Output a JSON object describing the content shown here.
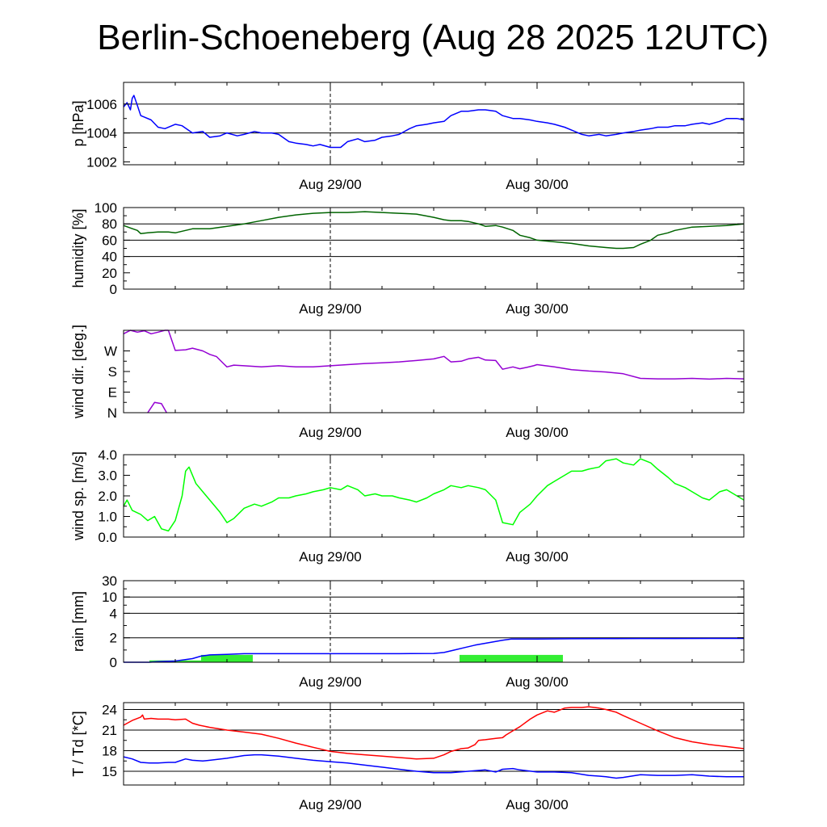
{
  "title": "Berlin-Schoeneberg (Aug 28 2025 12UTC)",
  "colors": {
    "pressure": "#0000ff",
    "humidity": "#006400",
    "wind_dir": "#9400d3",
    "wind_speed": "#00ff00",
    "rain_accum": "#0000ff",
    "rain_bars": "#33ee33",
    "temperature": "#ff0000",
    "dewpoint": "#0000ff"
  },
  "chart_data": [
    {
      "type": "line",
      "name": "pressure",
      "ylabel": "p [hPa]",
      "ylim": [
        1001.8,
        1007.5
      ],
      "yticks": [
        1002,
        1004,
        1006
      ],
      "ytick_labels": [
        "1002",
        "1004",
        "1006"
      ],
      "grid_y": [
        1004,
        1006
      ],
      "xlim": [
        0,
        36
      ],
      "xticks": [
        12,
        24
      ],
      "xtick_labels": [
        "Aug 29/00",
        "Aug 30/00"
      ],
      "vline": 12,
      "series": [
        {
          "color_key": "pressure",
          "x": [
            0,
            0.2,
            0.4,
            0.5,
            0.6,
            0.8,
            1.0,
            1.2,
            1.6,
            2.0,
            2.4,
            3.0,
            3.4,
            4.0,
            4.6,
            5.0,
            5.6,
            6.0,
            6.6,
            7.0,
            7.6,
            8.0,
            8.6,
            9.0,
            9.6,
            10.0,
            10.6,
            11.0,
            11.4,
            12.0,
            12.6,
            13.0,
            13.6,
            14.0,
            14.6,
            15.0,
            15.6,
            16.0,
            16.6,
            17.0,
            17.6,
            18.0,
            18.6,
            19.0,
            19.6,
            20.0,
            20.6,
            21.0,
            21.6,
            22.0,
            22.6,
            23.0,
            23.6,
            24.0,
            24.6,
            25.0,
            25.6,
            26.0,
            26.6,
            27.0,
            27.6,
            28.0,
            28.6,
            29.0,
            29.6,
            30.0,
            30.6,
            31.0,
            31.6,
            32.0,
            32.6,
            33.0,
            33.6,
            34.0,
            34.6,
            35.0,
            35.6,
            36.0
          ],
          "y": [
            1005.8,
            1006.1,
            1005.6,
            1006.4,
            1006.6,
            1005.9,
            1005.2,
            1005.1,
            1004.9,
            1004.4,
            1004.3,
            1004.6,
            1004.5,
            1004.0,
            1004.1,
            1003.7,
            1003.8,
            1004.0,
            1003.8,
            1003.9,
            1004.1,
            1004.0,
            1004.0,
            1003.9,
            1003.4,
            1003.3,
            1003.2,
            1003.1,
            1003.2,
            1003.0,
            1003.0,
            1003.4,
            1003.6,
            1003.4,
            1003.5,
            1003.7,
            1003.8,
            1003.9,
            1004.3,
            1004.5,
            1004.6,
            1004.7,
            1004.8,
            1005.2,
            1005.5,
            1005.5,
            1005.6,
            1005.6,
            1005.5,
            1005.2,
            1005.0,
            1005.0,
            1004.9,
            1004.8,
            1004.7,
            1004.6,
            1004.4,
            1004.2,
            1003.9,
            1003.8,
            1003.9,
            1003.8,
            1003.9,
            1004.0,
            1004.1,
            1004.2,
            1004.3,
            1004.4,
            1004.4,
            1004.5,
            1004.5,
            1004.6,
            1004.7,
            1004.6,
            1004.8,
            1005.0,
            1005.0,
            1004.9
          ]
        }
      ]
    },
    {
      "type": "line",
      "name": "humidity",
      "ylabel": "humidity [%]",
      "ylim": [
        0,
        100
      ],
      "yticks": [
        0,
        20,
        40,
        60,
        80,
        100
      ],
      "ytick_labels": [
        "0",
        "20",
        "40",
        "60",
        "80",
        "100"
      ],
      "grid_y": [
        40,
        60,
        80
      ],
      "xlim": [
        0,
        36
      ],
      "xticks": [
        12,
        24
      ],
      "xtick_labels": [
        "Aug 29/00",
        "Aug 30/00"
      ],
      "vline": 12,
      "series": [
        {
          "color_key": "humidity",
          "x": [
            0,
            0.4,
            0.8,
            1.0,
            1.4,
            2.0,
            2.6,
            3.0,
            3.6,
            4.0,
            5.0,
            6.0,
            7.0,
            8.0,
            9.0,
            10.0,
            11.0,
            12.0,
            13.0,
            14.0,
            15.0,
            16.0,
            17.0,
            18.0,
            18.6,
            19.0,
            19.6,
            20.0,
            20.6,
            21.0,
            21.6,
            22.0,
            22.6,
            23.0,
            23.6,
            24.0,
            25.0,
            26.0,
            27.0,
            28.0,
            28.6,
            29.0,
            29.6,
            30.0,
            30.6,
            31.0,
            31.6,
            32.0,
            33.0,
            34.0,
            35.0,
            36.0
          ],
          "y": [
            78,
            75,
            72,
            68,
            69,
            70,
            70,
            69,
            72,
            74,
            74,
            77,
            80,
            84,
            88,
            91,
            93,
            94,
            94,
            95,
            94,
            93,
            92,
            88,
            85,
            84,
            84,
            83,
            80,
            77,
            78,
            76,
            72,
            66,
            63,
            60,
            58,
            56,
            53,
            51,
            50,
            50,
            51,
            55,
            60,
            66,
            69,
            72,
            76,
            77,
            78,
            80
          ]
        }
      ]
    },
    {
      "type": "line",
      "name": "wind_dir",
      "ylabel": "wind dir. [deg.]",
      "ylim": [
        0,
        360
      ],
      "yticks": [
        0,
        90,
        180,
        270
      ],
      "ytick_labels": [
        "N",
        "E",
        "S",
        "W"
      ],
      "grid_y": [],
      "xlim": [
        0,
        36
      ],
      "xticks": [
        12,
        24
      ],
      "xtick_labels": [
        "Aug 29/00",
        "Aug 30/00"
      ],
      "vline": 12,
      "series": [
        {
          "color_key": "wind_dir",
          "x": [
            0,
            0.4,
            0.8,
            1.2,
            1.6,
            2.0,
            2.4,
            2.6
          ],
          "y": [
            345,
            360,
            352,
            358,
            345,
            352,
            360,
            360
          ]
        },
        {
          "color_key": "wind_dir",
          "x": [
            1.4,
            1.8,
            2.2,
            2.5
          ],
          "y": [
            0,
            45,
            40,
            0
          ]
        },
        {
          "color_key": "wind_dir",
          "x": [
            2.6,
            3.0,
            3.6,
            4.0,
            4.6,
            5.0,
            5.4,
            5.8,
            6.0,
            6.4,
            7.0,
            8.0,
            9.0,
            10.0,
            11.0,
            12.0,
            13.0,
            14.0,
            15.0,
            16.0,
            17.0,
            18.0,
            18.6,
            19.0,
            19.6,
            20.0,
            20.6,
            21.0,
            21.6,
            22.0,
            22.6,
            23.0,
            23.4,
            23.8,
            24.0,
            25.0,
            26.0,
            27.0,
            28.0,
            29.0,
            30.0,
            31.0,
            32.0,
            33.0,
            34.0,
            35.0,
            36.0
          ],
          "y": [
            360,
            272,
            275,
            282,
            270,
            255,
            245,
            215,
            200,
            208,
            205,
            200,
            205,
            200,
            200,
            205,
            210,
            215,
            218,
            222,
            228,
            235,
            246,
            222,
            225,
            235,
            242,
            230,
            228,
            190,
            200,
            192,
            198,
            205,
            210,
            200,
            188,
            182,
            178,
            170,
            150,
            148,
            148,
            150,
            147,
            150,
            148
          ]
        }
      ]
    },
    {
      "type": "line",
      "name": "wind_speed",
      "ylabel": "wind sp. [m/s]",
      "ylim": [
        0,
        4.0
      ],
      "yticks": [
        0,
        1,
        2,
        3,
        4
      ],
      "ytick_labels": [
        "0.0",
        "1.0",
        "2.0",
        "3.0",
        "4.0"
      ],
      "grid_y": [],
      "xlim": [
        0,
        36
      ],
      "xticks": [
        12,
        24
      ],
      "xtick_labels": [
        "Aug 29/00",
        "Aug 30/00"
      ],
      "vline": 12,
      "series": [
        {
          "color_key": "wind_speed",
          "x": [
            0,
            0.2,
            0.5,
            1.0,
            1.4,
            1.8,
            2.2,
            2.6,
            3.0,
            3.4,
            3.6,
            3.8,
            4.2,
            4.6,
            5.0,
            5.6,
            6.0,
            6.4,
            7.0,
            7.6,
            8.0,
            8.6,
            9.0,
            9.6,
            10.0,
            10.6,
            11.0,
            11.6,
            12.0,
            12.6,
            13.0,
            13.6,
            14.0,
            14.6,
            15.0,
            15.6,
            16.0,
            16.6,
            17.0,
            17.6,
            18.0,
            18.6,
            19.0,
            19.6,
            20.0,
            20.6,
            21.0,
            21.6,
            22.0,
            22.6,
            23.0,
            23.6,
            24.0,
            24.6,
            25.0,
            25.6,
            26.0,
            26.6,
            27.0,
            27.6,
            28.0,
            28.6,
            29.0,
            29.6,
            30.0,
            30.6,
            31.0,
            31.6,
            32.0,
            32.6,
            33.0,
            33.6,
            34.0,
            34.6,
            35.0,
            35.6,
            36.0
          ],
          "y": [
            1.5,
            1.8,
            1.3,
            1.1,
            0.8,
            1.0,
            0.4,
            0.3,
            0.8,
            2.0,
            3.2,
            3.4,
            2.6,
            2.2,
            1.8,
            1.2,
            0.7,
            0.9,
            1.4,
            1.6,
            1.5,
            1.7,
            1.9,
            1.9,
            2.0,
            2.1,
            2.2,
            2.3,
            2.4,
            2.3,
            2.5,
            2.3,
            2.0,
            2.1,
            2.0,
            2.0,
            1.9,
            1.8,
            1.7,
            1.9,
            2.1,
            2.3,
            2.5,
            2.4,
            2.5,
            2.4,
            2.3,
            1.8,
            0.7,
            0.6,
            1.2,
            1.6,
            2.0,
            2.5,
            2.7,
            3.0,
            3.2,
            3.2,
            3.3,
            3.4,
            3.7,
            3.8,
            3.6,
            3.5,
            3.8,
            3.6,
            3.3,
            2.9,
            2.6,
            2.4,
            2.2,
            1.9,
            1.8,
            2.2,
            2.3,
            2.0,
            1.8
          ]
        }
      ]
    },
    {
      "type": "bar+line",
      "name": "rain",
      "ylabel": "rain [mm]",
      "yscale": "nonlinear",
      "yticks": [
        0,
        2,
        4,
        10,
        30
      ],
      "ytick_labels": [
        "0",
        "2",
        "4",
        "10",
        "30"
      ],
      "grid_y": [
        2,
        4,
        10,
        30
      ],
      "xlim": [
        0,
        36
      ],
      "xticks": [
        12,
        24
      ],
      "xtick_labels": [
        "Aug 29/00",
        "Aug 30/00"
      ],
      "vline": 12,
      "bars": [
        {
          "x0": 1.5,
          "x1": 4.5,
          "value": 0.15
        },
        {
          "x0": 4.5,
          "x1": 7.5,
          "value": 0.6
        },
        {
          "x0": 19.5,
          "x1": 22.5,
          "value": 0.6
        },
        {
          "x0": 22.5,
          "x1": 25.5,
          "value": 0.6
        }
      ],
      "series": [
        {
          "color_key": "rain_accum",
          "x": [
            0,
            1.5,
            2.0,
            3.0,
            4.0,
            4.5,
            5.0,
            6.0,
            7.0,
            8.0,
            10.0,
            12.0,
            14.0,
            16.0,
            18.0,
            18.6,
            19.2,
            19.8,
            20.4,
            21.0,
            21.6,
            22.0,
            22.5,
            23.0,
            24.0,
            26.0,
            28.0,
            30.0,
            32.0,
            34.0,
            36.0
          ],
          "y": [
            0,
            0,
            0.05,
            0.1,
            0.3,
            0.5,
            0.6,
            0.65,
            0.7,
            0.7,
            0.7,
            0.7,
            0.7,
            0.7,
            0.72,
            0.8,
            1.0,
            1.2,
            1.4,
            1.55,
            1.7,
            1.8,
            1.9,
            1.9,
            1.9,
            1.92,
            1.93,
            1.94,
            1.94,
            1.95,
            1.95
          ]
        }
      ]
    },
    {
      "type": "line",
      "name": "temperature",
      "ylabel": "T / Td [*C]",
      "ylim": [
        13.0,
        25.0
      ],
      "yticks": [
        15,
        18,
        21,
        24
      ],
      "ytick_labels": [
        "15",
        "18",
        "21",
        "24"
      ],
      "grid_y": [
        15,
        18,
        21,
        24
      ],
      "xlim": [
        0,
        36
      ],
      "xticks": [
        12,
        24
      ],
      "xtick_labels": [
        "Aug 29/00",
        "Aug 30/00"
      ],
      "vline": 12,
      "series": [
        {
          "name": "T",
          "color_key": "temperature",
          "x": [
            0,
            0.5,
            1.0,
            1.1,
            1.2,
            1.6,
            2.0,
            2.6,
            3.0,
            3.6,
            4.0,
            4.4,
            5.0,
            6.0,
            7.0,
            8.0,
            9.0,
            10.0,
            11.0,
            12.0,
            13.0,
            14.0,
            15.0,
            16.0,
            17.0,
            18.0,
            18.6,
            19.0,
            19.6,
            20.0,
            20.4,
            20.6,
            21.0,
            21.6,
            22.0,
            22.2,
            22.6,
            23.0,
            23.6,
            24.0,
            24.6,
            25.0,
            25.6,
            26.0,
            26.6,
            27.0,
            27.6,
            28.0,
            28.6,
            29.0,
            30.0,
            31.0,
            32.0,
            33.0,
            34.0,
            35.0,
            36.0
          ],
          "y": [
            21.7,
            22.4,
            22.9,
            23.2,
            22.6,
            22.7,
            22.6,
            22.6,
            22.5,
            22.6,
            22.0,
            21.7,
            21.4,
            21.0,
            20.7,
            20.4,
            19.8,
            19.1,
            18.5,
            17.9,
            17.6,
            17.4,
            17.2,
            17.0,
            16.8,
            16.9,
            17.4,
            17.9,
            18.3,
            18.4,
            18.9,
            19.5,
            19.6,
            19.8,
            19.9,
            20.3,
            20.9,
            21.5,
            22.6,
            23.2,
            23.8,
            23.6,
            24.2,
            24.3,
            24.3,
            24.4,
            24.2,
            24.0,
            23.6,
            23.1,
            22.0,
            20.9,
            19.9,
            19.3,
            18.9,
            18.6,
            18.3
          ]
        },
        {
          "name": "Td",
          "color_key": "dewpoint",
          "x": [
            0,
            0.5,
            1.0,
            1.5,
            2.0,
            2.6,
            3.0,
            3.6,
            4.0,
            4.6,
            5.0,
            6.0,
            7.0,
            7.6,
            8.0,
            9.0,
            10.0,
            11.0,
            12.0,
            13.0,
            14.0,
            15.0,
            16.0,
            17.0,
            18.0,
            19.0,
            20.0,
            21.0,
            21.6,
            22.0,
            22.6,
            23.0,
            24.0,
            25.0,
            26.0,
            27.0,
            27.6,
            28.0,
            28.6,
            29.0,
            30.0,
            31.0,
            32.0,
            33.0,
            34.0,
            35.0,
            36.0
          ],
          "y": [
            17.1,
            16.8,
            16.3,
            16.2,
            16.2,
            16.3,
            16.3,
            16.8,
            16.6,
            16.5,
            16.6,
            16.9,
            17.3,
            17.4,
            17.4,
            17.2,
            16.9,
            16.6,
            16.4,
            16.2,
            15.9,
            15.6,
            15.3,
            15.0,
            14.8,
            14.8,
            15.0,
            15.2,
            14.9,
            15.3,
            15.4,
            15.2,
            14.9,
            14.9,
            14.8,
            14.4,
            14.3,
            14.2,
            14.0,
            14.1,
            14.5,
            14.4,
            14.4,
            14.5,
            14.3,
            14.2,
            14.2
          ]
        }
      ]
    }
  ]
}
